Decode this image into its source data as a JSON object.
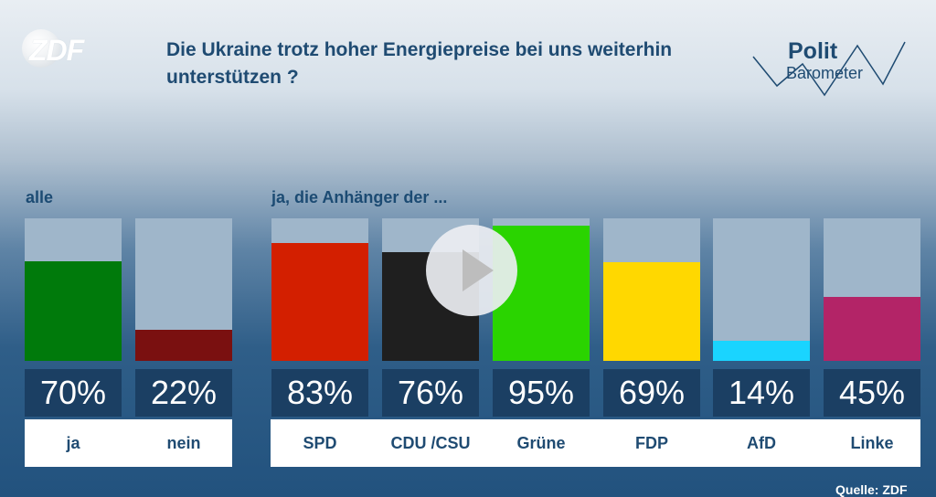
{
  "brand": {
    "zdf_logo_text": "ZDF",
    "polit_line1": "Polit",
    "polit_line2": "Barometer"
  },
  "question": "Die Ukraine trotz hoher Energiepreise bei uns weiterhin unterstützen ?",
  "group_labels": {
    "all": "alle",
    "supporters": "ja, die Anhänger der ..."
  },
  "source": "Quelle: ZDF",
  "colors": {
    "track": "#9fb6ca",
    "value_box": "#1b3f63",
    "ja": "#007a0b",
    "nein": "#7a1010",
    "SPD": "#d31f00",
    "CDU/CSU": "#1f1f1f",
    "Grüne": "#2ad400",
    "FDP": "#ffd800",
    "AfD": "#1ad4ff",
    "Linke": "#b32467"
  },
  "chart_data": {
    "type": "bar",
    "title": "Die Ukraine trotz hoher Energiepreise bei uns weiterhin unterstützen ?",
    "categories": [
      "ja",
      "nein",
      "SPD",
      "CDU / CSU",
      "Grüne",
      "FDP",
      "AfD",
      "Linke"
    ],
    "values": [
      70,
      22,
      83,
      76,
      95,
      69,
      14,
      45
    ],
    "value_labels": [
      "70%",
      "22%",
      "83%",
      "76%",
      "95%",
      "69%",
      "14%",
      "45%"
    ],
    "ylim": [
      0,
      100
    ],
    "grid": false
  },
  "player": {
    "play_icon": "play-icon"
  }
}
